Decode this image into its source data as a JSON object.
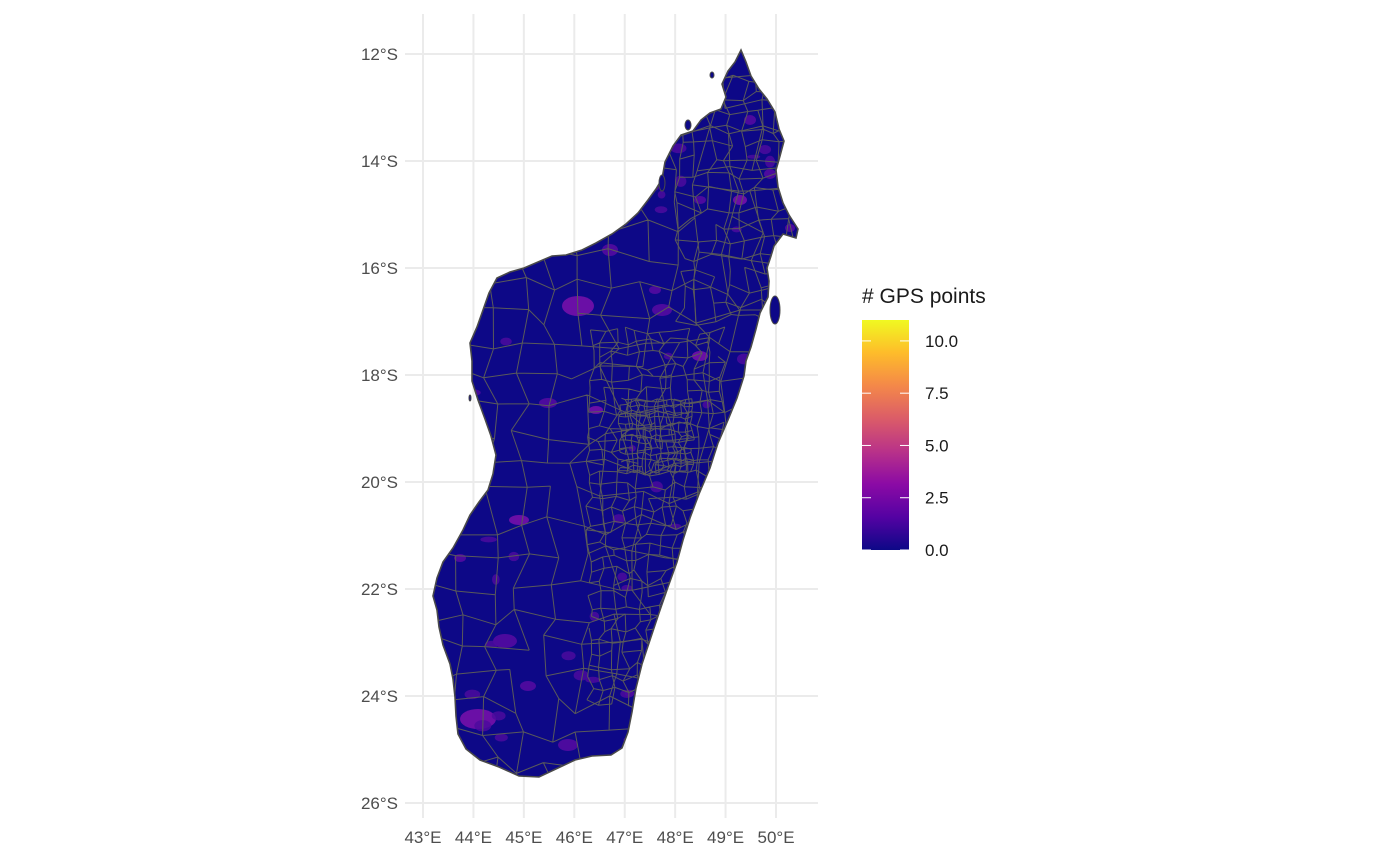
{
  "chart_data": {
    "type": "heatmap",
    "subtype": "choropleth map",
    "grid": true,
    "axes": {
      "x": {
        "ticks": [
          "43°E",
          "44°E",
          "45°E",
          "46°E",
          "47°E",
          "48°E",
          "49°E",
          "50°E"
        ],
        "tick_values": [
          43,
          44,
          45,
          46,
          47,
          48,
          49,
          50
        ],
        "range": [
          42.8,
          50.8
        ]
      },
      "y": {
        "ticks": [
          "12°S",
          "14°S",
          "16°S",
          "18°S",
          "20°S",
          "22°S",
          "24°S",
          "26°S"
        ],
        "tick_values": [
          -12,
          -14,
          -16,
          -18,
          -20,
          -22,
          -24,
          -26
        ],
        "range": [
          -26.2,
          -11.4
        ]
      }
    },
    "legend": {
      "title": "# GPS points",
      "placement": "right",
      "min": 0,
      "max": 11,
      "ticks": [
        "10.0",
        "7.5",
        "5.0",
        "2.5",
        "0.0"
      ],
      "tick_values": [
        10.0,
        7.5,
        5.0,
        2.5,
        0.0
      ],
      "colors": [
        "#0d0887",
        "#5402a3",
        "#8b0aa5",
        "#b93289",
        "#db5c68",
        "#f48849",
        "#febc2a",
        "#f0f921"
      ]
    },
    "fill_colors": {
      "region_low": "#1a0c8c",
      "region_mid": "#4c0a9e",
      "region_high": "#6a0fa6",
      "border": "#5a5a5a",
      "grid": "#ebebeb"
    }
  }
}
